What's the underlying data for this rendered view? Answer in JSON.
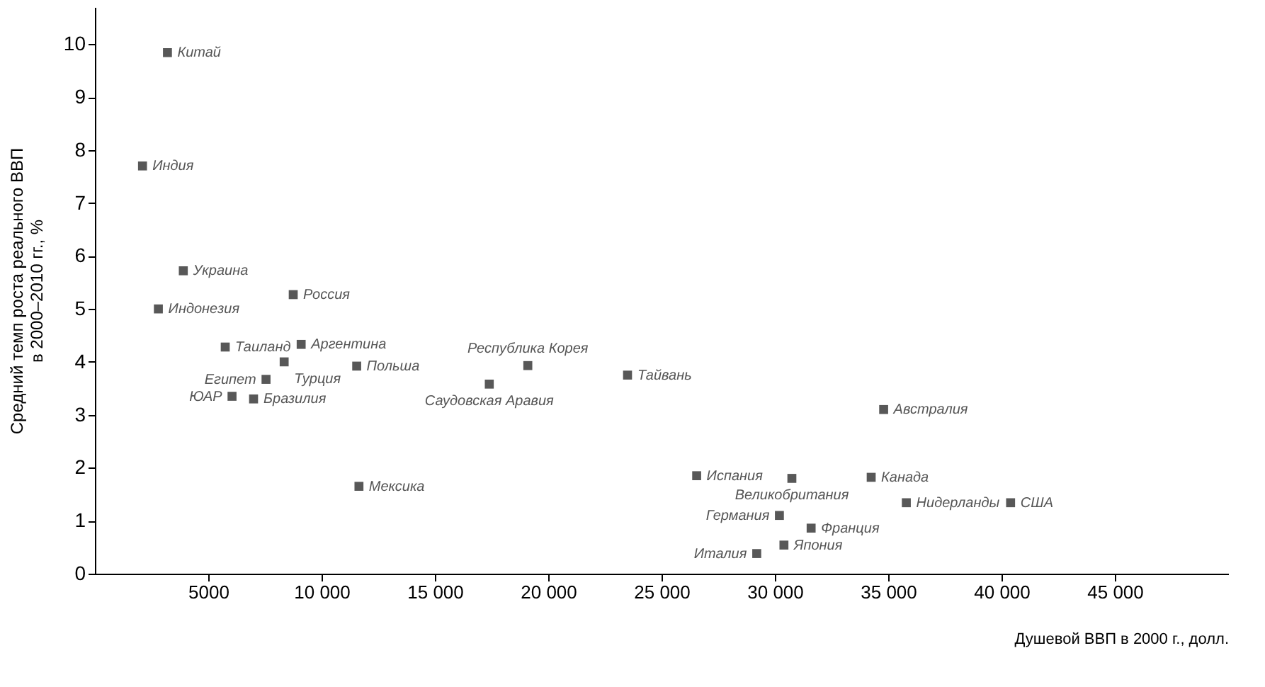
{
  "chart_data": {
    "type": "scatter",
    "xlabel": "Душевой ВВП в 2000 г., долл.",
    "ylabel": "Средний темп роста реального ВВП\nв 2000–2010 гг., %",
    "x": [
      3200,
      2100,
      3900,
      2800,
      5750,
      8750,
      9100,
      8350,
      7550,
      6050,
      7000,
      11550,
      11650,
      17400,
      19100,
      23500,
      26550,
      30750,
      30200,
      31600,
      30400,
      29200,
      34250,
      35800,
      34800,
      40400
    ],
    "series": [
      {
        "color": "#111111",
        "values": [
          9.84,
          7.7,
          5.72,
          5.0,
          4.28,
          5.27,
          4.33,
          4.0,
          3.67,
          3.35,
          3.3,
          3.92,
          1.65,
          3.58,
          3.93,
          3.75,
          1.85,
          1.8,
          1.1,
          0.86,
          0.54,
          0.38,
          1.82,
          1.34,
          3.1,
          1.34
        ]
      }
    ],
    "annotations": [
      {
        "text": "Китай",
        "x": 3200,
        "y": 9.84
      },
      {
        "text": "Индия",
        "x": 2100,
        "y": 7.7
      },
      {
        "text": "Украина",
        "x": 3900,
        "y": 5.72
      },
      {
        "text": "Индонезия",
        "x": 2800,
        "y": 5.0
      },
      {
        "text": "Таиланд",
        "x": 5750,
        "y": 4.28
      },
      {
        "text": "Россия",
        "x": 8750,
        "y": 5.27
      },
      {
        "text": "Аргентина",
        "x": 9100,
        "y": 4.33
      },
      {
        "text": "Турция",
        "x": 8350,
        "y": 4.0
      },
      {
        "text": "Египет",
        "x": 7550,
        "y": 3.67
      },
      {
        "text": "ЮАР",
        "x": 6050,
        "y": 3.35
      },
      {
        "text": "Бразилия",
        "x": 7000,
        "y": 3.3
      },
      {
        "text": "Польша",
        "x": 11550,
        "y": 3.92
      },
      {
        "text": "Мексика",
        "x": 11650,
        "y": 1.65
      },
      {
        "text": "Саудовская Аравия",
        "x": 17400,
        "y": 3.58
      },
      {
        "text": "Республика Корея",
        "x": 19100,
        "y": 3.93
      },
      {
        "text": "Тайвань",
        "x": 23500,
        "y": 3.75
      },
      {
        "text": "Испания",
        "x": 26550,
        "y": 1.85
      },
      {
        "text": "Великобритания",
        "x": 30750,
        "y": 1.8
      },
      {
        "text": "Германия",
        "x": 30200,
        "y": 1.1
      },
      {
        "text": "Франция",
        "x": 31600,
        "y": 0.86
      },
      {
        "text": "Япония",
        "x": 30400,
        "y": 0.54
      },
      {
        "text": "Италия",
        "x": 29200,
        "y": 0.38
      },
      {
        "text": "Канада",
        "x": 34250,
        "y": 1.82
      },
      {
        "text": "Нидерланды",
        "x": 35800,
        "y": 1.34
      },
      {
        "text": "Австралия",
        "x": 34800,
        "y": 3.1
      },
      {
        "text": "США",
        "x": 40400,
        "y": 1.34
      }
    ],
    "xlim": [
      0,
      50000
    ],
    "xticks": [
      5000,
      {
        "value": 10000,
        "label": "10 000"
      },
      {
        "value": 15000,
        "label": "15 000"
      },
      {
        "value": 20000,
        "label": "20 000"
      },
      {
        "value": 25000,
        "label": "25 000"
      },
      {
        "value": 30000,
        "label": "30 000"
      },
      {
        "value": 35000,
        "label": "35 000"
      },
      {
        "value": 40000,
        "label": "40 000"
      },
      {
        "value": 45000,
        "label": "45 000"
      }
    ],
    "ylim": [
      0,
      10.7
    ],
    "yticks": [
      0,
      1,
      2,
      3,
      4,
      5,
      6,
      7,
      8,
      9,
      10
    ],
    "grid": false,
    "marker": "square"
  }
}
